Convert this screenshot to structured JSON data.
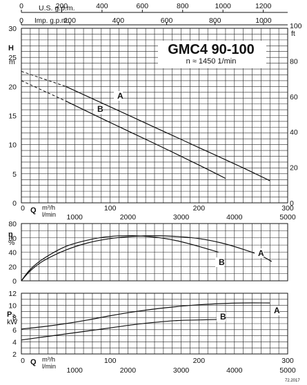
{
  "chart_data": [
    {
      "type": "line",
      "title": "GMC4 90-100",
      "subtitle": "n ≈ 1450 1/min",
      "ylabel_left": "H",
      "ylabel_left_unit": "m",
      "ylabel_right_unit": "ft",
      "ylim": [
        0,
        30
      ],
      "xlim": [
        0,
        300
      ],
      "y_ticks": [
        "0",
        "5",
        "10",
        "15",
        "20",
        "25",
        "30"
      ],
      "y_right_ticks": [
        "0",
        "20",
        "40",
        "60",
        "80",
        "100"
      ],
      "top_axis_usgpm_label": "U.S. g.p.m.",
      "top_axis_usgpm_ticks": [
        "0",
        "200",
        "400",
        "600",
        "800",
        "1000",
        "1200"
      ],
      "top_axis_impgpm_label": "Imp. g.p.m.",
      "top_axis_impgpm_ticks": [
        "0",
        "200",
        "400",
        "600",
        "800",
        "1000"
      ],
      "series": [
        {
          "name": "A",
          "x": [
            0,
            50,
            100,
            150,
            200,
            250,
            280
          ],
          "y": [
            22.6,
            20.0,
            16.5,
            13.0,
            9.5,
            6.0,
            3.8
          ]
        },
        {
          "name": "B",
          "x": [
            0,
            50,
            100,
            150,
            200,
            230
          ],
          "y": [
            21.0,
            17.5,
            13.8,
            10.2,
            6.5,
            4.2
          ]
        }
      ],
      "dashed_segment_to_x": 50
    },
    {
      "type": "line",
      "ylabel": "η",
      "ylabel_unit": "%",
      "ylim": [
        0,
        80
      ],
      "xlim": [
        0,
        300
      ],
      "y_ticks": [
        "0",
        "20",
        "40",
        "60",
        "80"
      ],
      "x_ticks_m3h": [
        "0",
        "100",
        "200",
        "300"
      ],
      "x_ticks_lmin": [
        "0",
        "1000",
        "2000",
        "3000",
        "4000",
        "5000"
      ],
      "x_label_q": "Q",
      "x_unit_m3h": "m³/h",
      "x_unit_lmin": "l/min",
      "series": [
        {
          "name": "A",
          "x": [
            0,
            10,
            25,
            50,
            75,
            100,
            125,
            150,
            175,
            200,
            225,
            250,
            270,
            282
          ],
          "y": [
            0,
            14,
            28,
            43,
            53,
            59,
            62,
            63,
            62,
            59,
            53,
            44,
            35,
            27
          ]
        },
        {
          "name": "B",
          "x": [
            0,
            10,
            25,
            50,
            75,
            100,
            125,
            150,
            175,
            200,
            222
          ],
          "y": [
            0,
            16,
            31,
            48,
            57,
            62,
            63,
            61,
            56,
            48,
            40
          ]
        }
      ]
    },
    {
      "type": "line",
      "ylabel": "P₂",
      "ylabel_unit": "kW",
      "ylim": [
        2,
        12
      ],
      "xlim": [
        0,
        300
      ],
      "y_ticks": [
        "2",
        "4",
        "6",
        "8",
        "10",
        "12"
      ],
      "x_ticks_m3h": [
        "0",
        "100",
        "200",
        "300"
      ],
      "x_ticks_lmin": [
        "0",
        "1000",
        "2000",
        "3000",
        "4000",
        "5000"
      ],
      "x_label_q": "Q",
      "x_unit_m3h": "m³/h",
      "x_unit_lmin": "l/min",
      "series": [
        {
          "name": "A",
          "x": [
            0,
            25,
            50,
            75,
            100,
            125,
            150,
            175,
            200,
            225,
            250,
            280
          ],
          "y": [
            6.1,
            6.5,
            7.0,
            7.6,
            8.3,
            8.9,
            9.4,
            9.8,
            10.1,
            10.3,
            10.4,
            10.4
          ]
        },
        {
          "name": "B",
          "x": [
            0,
            25,
            50,
            75,
            100,
            125,
            150,
            175,
            200,
            230
          ],
          "y": [
            4.3,
            4.8,
            5.3,
            5.8,
            6.3,
            6.8,
            7.2,
            7.5,
            7.6,
            7.7
          ]
        }
      ]
    }
  ],
  "footer_code": "72.2017"
}
